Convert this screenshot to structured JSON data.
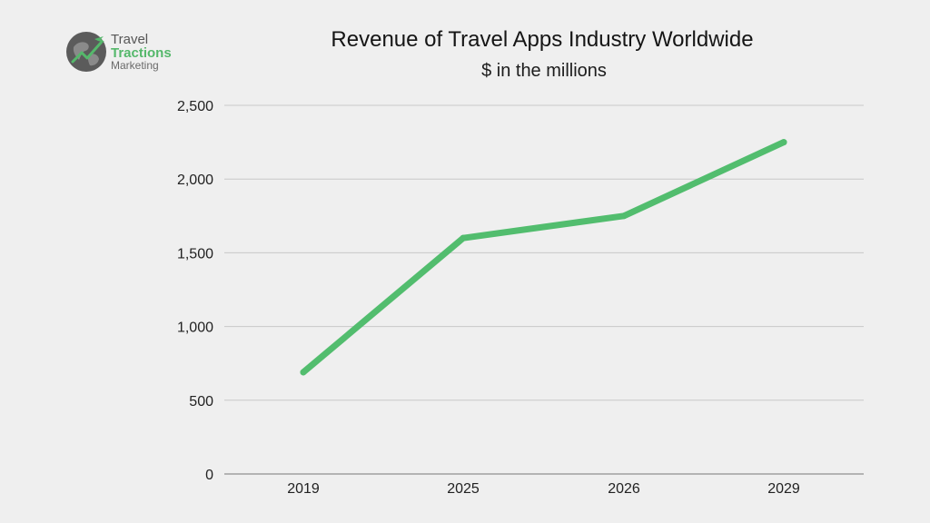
{
  "logo": {
    "line1": "Travel",
    "line2": "Tractions",
    "line3": "Marketing"
  },
  "colors": {
    "background": "#efefef",
    "line": "#52bd6e",
    "grid": "#c8c8c8",
    "brand_green": "#55b86b"
  },
  "chart_data": {
    "type": "line",
    "title": "Revenue of Travel Apps Industry Worldwide",
    "subtitle": "$ in the millions",
    "xlabel": "",
    "ylabel": "",
    "categories": [
      "2019",
      "2025",
      "2026",
      "2029"
    ],
    "series": [
      {
        "name": "Revenue",
        "values": [
          690,
          1600,
          1750,
          2250
        ]
      }
    ],
    "ylim": [
      0,
      2500
    ],
    "yticks": [
      0,
      500,
      1000,
      1500,
      2000,
      2500
    ],
    "ytick_labels": [
      "0",
      "500",
      "1,000",
      "1,500",
      "2,000",
      "2,500"
    ],
    "grid": true,
    "legend": "none"
  }
}
